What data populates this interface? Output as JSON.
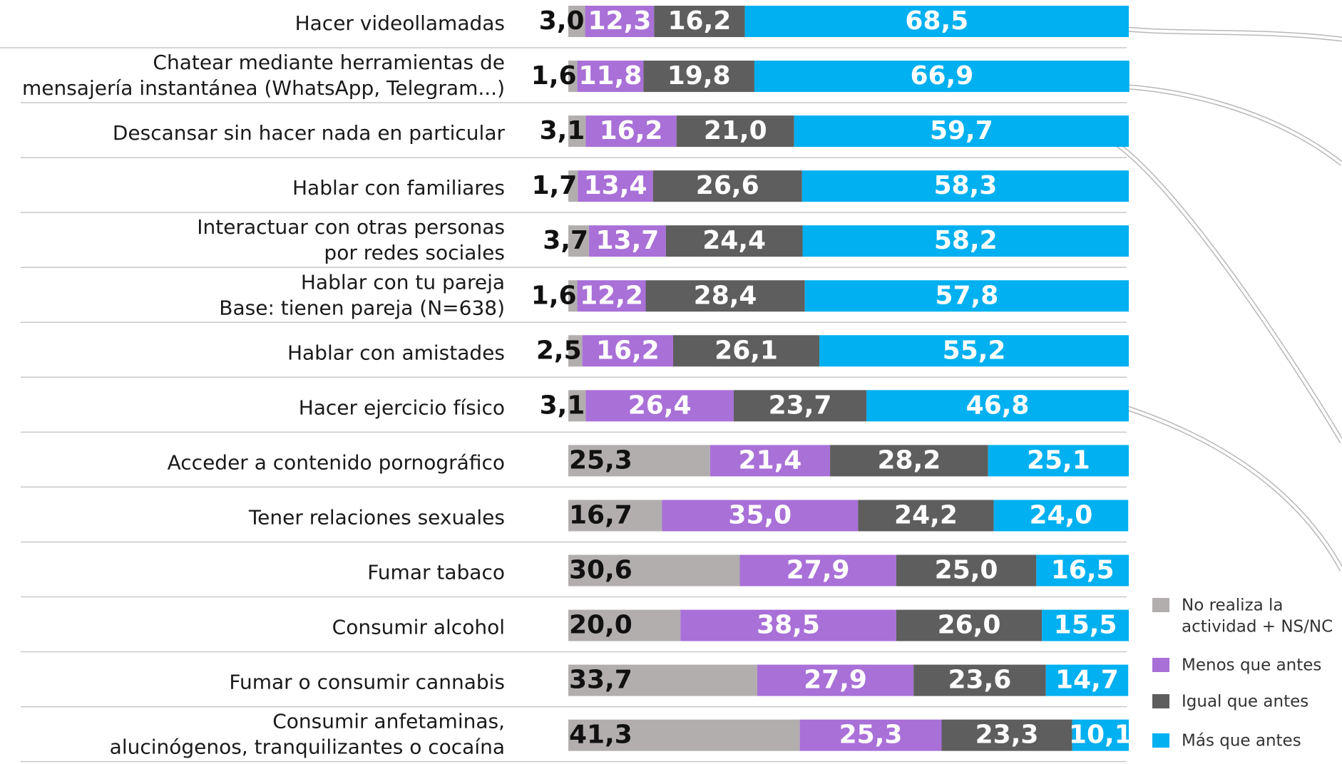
{
  "chart_data": {
    "type": "stacked-bar-horizontal",
    "categories": [
      "Hacer videollamadas",
      [
        "Chatear mediante herramientas de",
        "mensajería instantánea (WhatsApp, Telegram...)"
      ],
      "Descansar sin hacer nada en particular",
      "Hablar con familiares",
      [
        "Interactuar con otras personas",
        "por redes sociales"
      ],
      [
        "Hablar con tu pareja",
        "Base: tienen pareja (N=638)"
      ],
      "Hablar con amistades",
      "Hacer ejercicio físico",
      "Acceder a contenido pornográfico",
      "Tener relaciones sexuales",
      "Fumar tabaco",
      "Consumir alcohol",
      "Fumar o consumir cannabis",
      [
        "Consumir anfetaminas,",
        "alucinógenos, tranquilizantes o cocaína"
      ]
    ],
    "xlim": [
      0,
      100
    ],
    "series": [
      {
        "name": [
          "No realiza la",
          "actividad + NS/NC"
        ],
        "color": "#b1aead",
        "label_color": "#111111",
        "values": [
          3.0,
          1.6,
          3.1,
          1.7,
          3.7,
          1.6,
          2.5,
          3.1,
          25.3,
          16.7,
          30.6,
          20.0,
          33.7,
          41.3
        ],
        "value_labels": [
          "3,0",
          "1,6",
          "3,1",
          "1,7",
          "3,7",
          "1,6",
          "2,5",
          "3,1",
          "25,3",
          "16,7",
          "30,6",
          "20,0",
          "33,7",
          "41,3"
        ]
      },
      {
        "name": "Menos que antes",
        "color": "#a970d8",
        "label_color": "#ffffff",
        "values": [
          12.3,
          11.8,
          16.2,
          13.4,
          13.7,
          12.2,
          16.2,
          26.4,
          21.4,
          35.0,
          27.9,
          38.5,
          27.9,
          25.3
        ],
        "value_labels": [
          "12,3",
          "11,8",
          "16,2",
          "13,4",
          "13,7",
          "12,2",
          "16,2",
          "26,4",
          "21,4",
          "35,0",
          "27,9",
          "38,5",
          "27,9",
          "25,3"
        ]
      },
      {
        "name": "Igual que antes",
        "color": "#5e5e5e",
        "label_color": "#ffffff",
        "values": [
          16.2,
          19.8,
          21.0,
          26.6,
          24.4,
          28.4,
          26.1,
          23.7,
          28.2,
          24.2,
          25.0,
          26.0,
          23.6,
          23.3
        ],
        "value_labels": [
          "16,2",
          "19,8",
          "21,0",
          "26,6",
          "24,4",
          "28,4",
          "26,1",
          "23,7",
          "28,2",
          "24,2",
          "25,0",
          "26,0",
          "23,6",
          "23,3"
        ]
      },
      {
        "name": "Más que antes",
        "color": "#00b0f0",
        "label_color": "#ffffff",
        "values": [
          68.5,
          66.9,
          59.7,
          58.3,
          58.2,
          57.8,
          55.2,
          46.8,
          25.1,
          24.0,
          16.5,
          15.5,
          14.7,
          10.1
        ],
        "value_labels": [
          "68,5",
          "66,9",
          "59,7",
          "58,3",
          "58,2",
          "57,8",
          "55,2",
          "46,8",
          "25,1",
          "24,0",
          "16,5",
          "15,5",
          "14,7",
          "10,1"
        ]
      }
    ]
  }
}
